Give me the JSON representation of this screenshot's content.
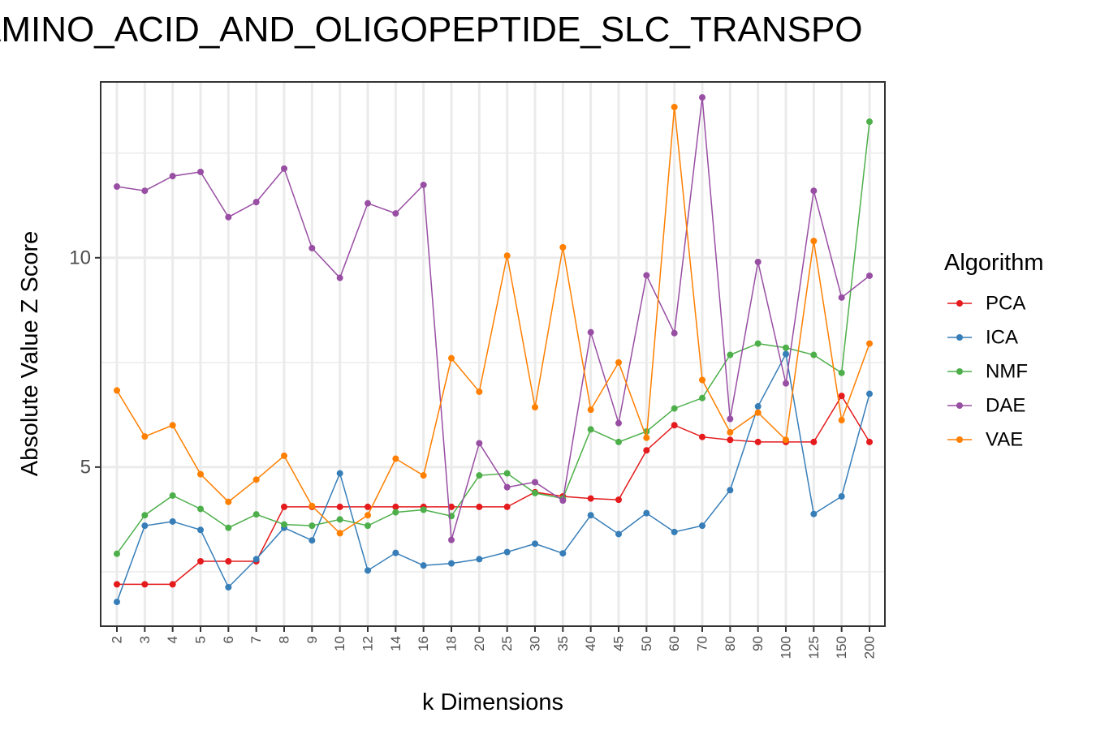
{
  "chart_data": {
    "type": "line",
    "title": "AMINO_ACID_AND_OLIGOPEPTIDE_SLC_TRANSPO",
    "xlabel": "k Dimensions",
    "ylabel": "Absolute Value Z Score",
    "ylim": [
      1.2,
      14.2
    ],
    "yticks": [
      5,
      10
    ],
    "grid": true,
    "legend_title": "Algorithm",
    "legend_position": "right",
    "categories": [
      "2",
      "3",
      "4",
      "5",
      "6",
      "7",
      "8",
      "9",
      "10",
      "12",
      "14",
      "16",
      "18",
      "20",
      "25",
      "30",
      "35",
      "40",
      "45",
      "50",
      "60",
      "70",
      "80",
      "90",
      "100",
      "125",
      "150",
      "200"
    ],
    "series": [
      {
        "name": "PCA",
        "color": "#e41a1c",
        "values": [
          2.2,
          2.2,
          2.2,
          2.75,
          2.75,
          2.75,
          4.05,
          4.05,
          4.05,
          4.05,
          4.05,
          4.05,
          4.05,
          4.05,
          4.05,
          4.4,
          4.3,
          4.25,
          4.22,
          5.4,
          6.0,
          5.72,
          5.65,
          5.6,
          5.6,
          5.6,
          6.7,
          5.6
        ]
      },
      {
        "name": "ICA",
        "color": "#377eb8",
        "values": [
          1.78,
          3.6,
          3.7,
          3.5,
          2.13,
          2.8,
          3.55,
          3.25,
          4.85,
          2.53,
          2.95,
          2.65,
          2.7,
          2.8,
          2.97,
          3.17,
          2.94,
          3.85,
          3.4,
          3.9,
          3.45,
          3.6,
          4.45,
          6.45,
          7.7,
          3.88,
          4.3,
          6.75
        ]
      },
      {
        "name": "NMF",
        "color": "#4daf4a",
        "values": [
          2.93,
          3.85,
          4.32,
          4.0,
          3.55,
          3.87,
          3.63,
          3.6,
          3.75,
          3.6,
          3.92,
          3.98,
          3.83,
          4.8,
          4.85,
          4.38,
          4.25,
          5.9,
          5.6,
          5.85,
          6.4,
          6.65,
          7.68,
          7.95,
          7.85,
          7.68,
          7.25,
          13.25
        ]
      },
      {
        "name": "DAE",
        "color": "#984ea3",
        "values": [
          11.7,
          11.6,
          11.95,
          12.05,
          10.97,
          11.33,
          12.13,
          10.23,
          9.52,
          11.3,
          11.06,
          11.74,
          3.26,
          5.57,
          4.52,
          4.64,
          4.2,
          8.22,
          6.05,
          9.58,
          8.2,
          13.83,
          6.15,
          9.9,
          7.0,
          11.6,
          9.05,
          9.57
        ]
      },
      {
        "name": "VAE",
        "color": "#ff7f00",
        "values": [
          6.83,
          5.73,
          6.0,
          4.83,
          4.17,
          4.7,
          5.27,
          4.07,
          3.42,
          3.85,
          5.2,
          4.8,
          7.6,
          6.8,
          10.05,
          6.43,
          10.25,
          6.37,
          7.5,
          5.7,
          13.6,
          7.08,
          5.83,
          6.3,
          5.65,
          10.4,
          6.12,
          7.95
        ]
      }
    ]
  }
}
